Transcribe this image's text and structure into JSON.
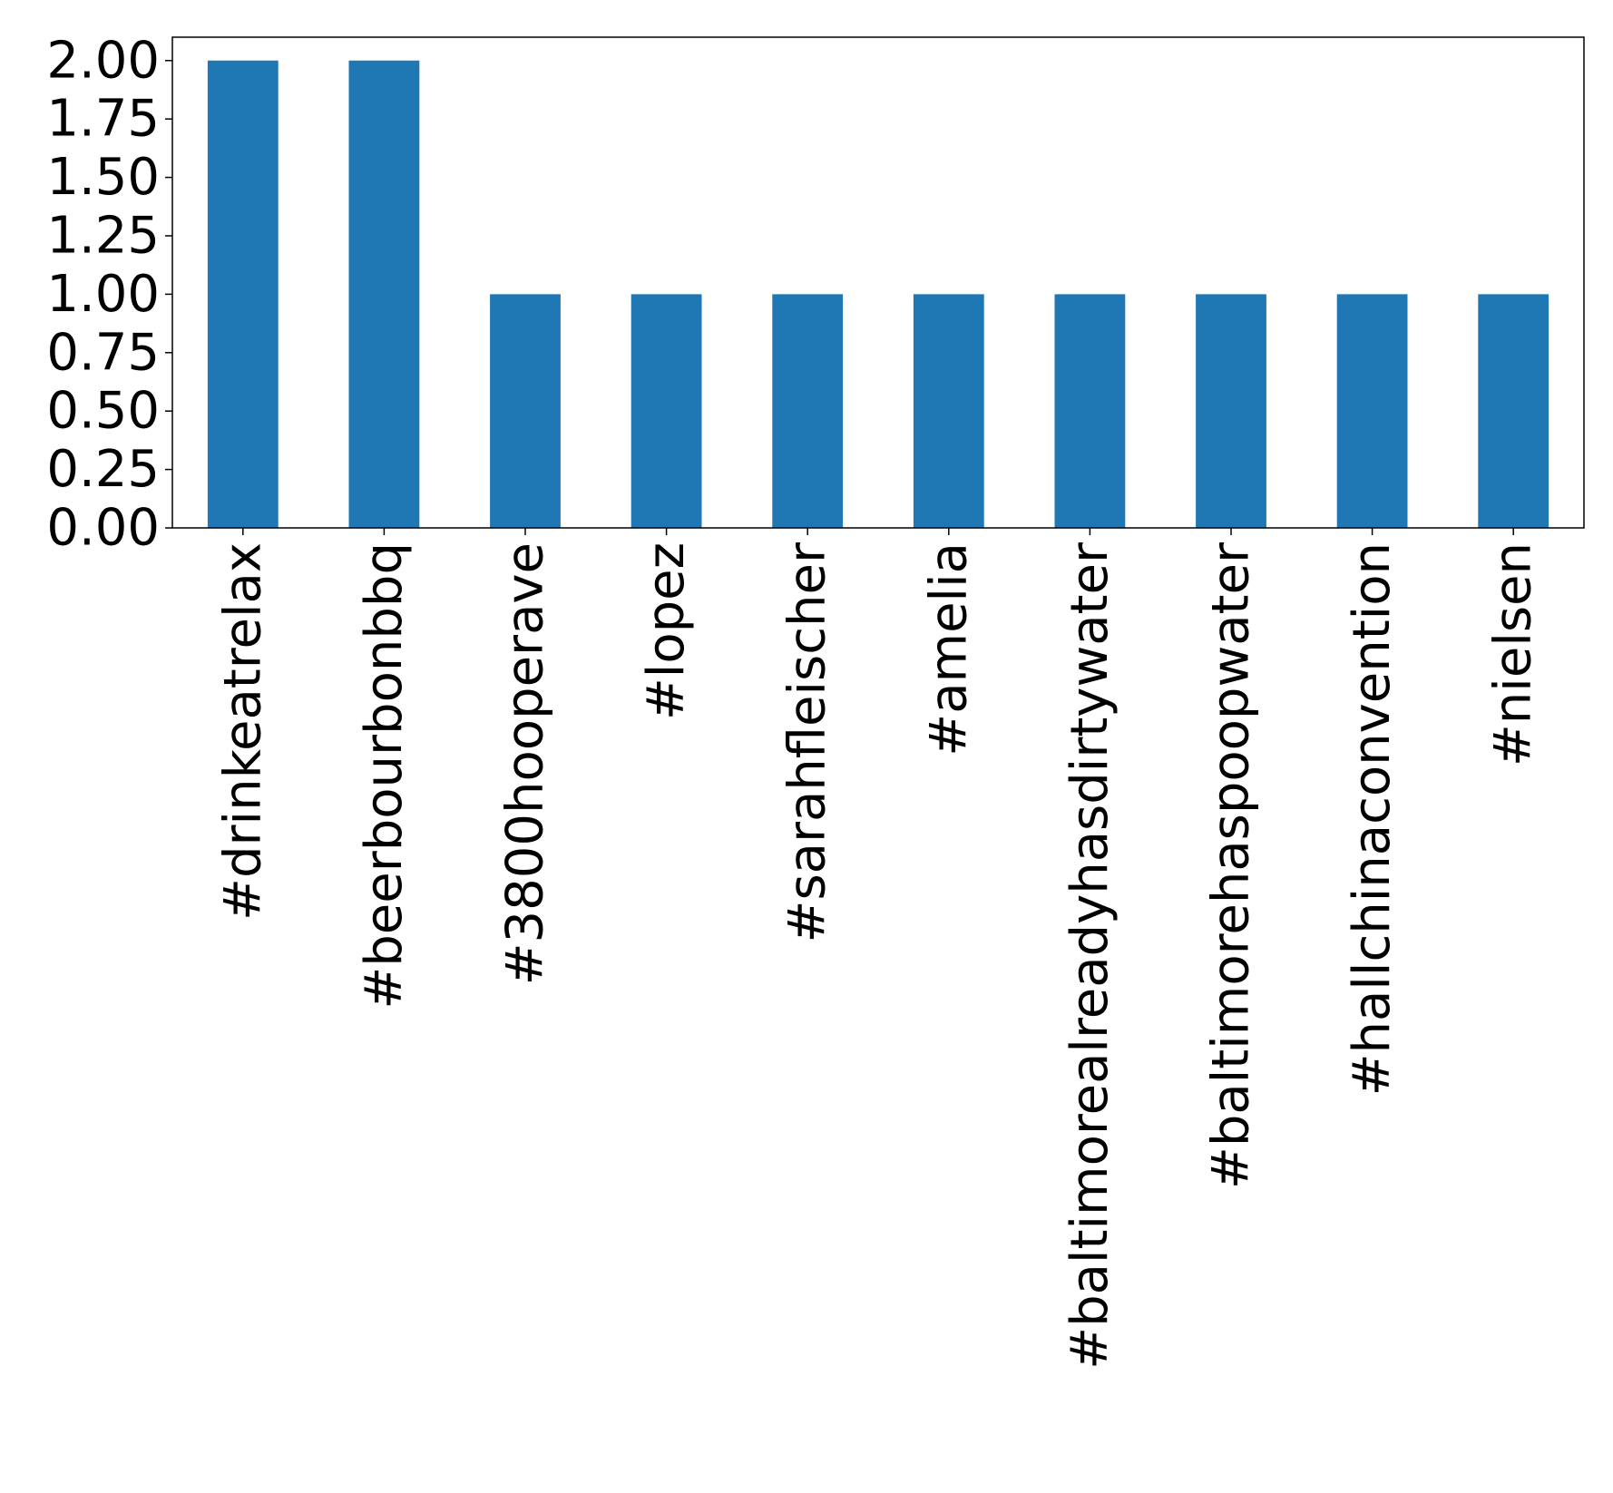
{
  "chart_data": {
    "type": "bar",
    "title": "",
    "xlabel": "",
    "ylabel": "",
    "categories": [
      "#drinkeatrelax",
      "#beerbourbonbbq",
      "#3800hooperave",
      "#lopez",
      "#sarahfleischer",
      "#amelia",
      "#baltimorealreadyhasdirtywater",
      "#baltimorehaspoopwater",
      "#hallchinaconvention",
      "#nielsen"
    ],
    "values": [
      2,
      2,
      1,
      1,
      1,
      1,
      1,
      1,
      1,
      1
    ],
    "ylim": [
      0,
      2.1
    ],
    "yticks": [
      "0.00",
      "0.25",
      "0.50",
      "0.75",
      "1.00",
      "1.25",
      "1.50",
      "1.75",
      "2.00"
    ],
    "bar_color": "#1f77b4",
    "grid": false,
    "legend": "none"
  }
}
